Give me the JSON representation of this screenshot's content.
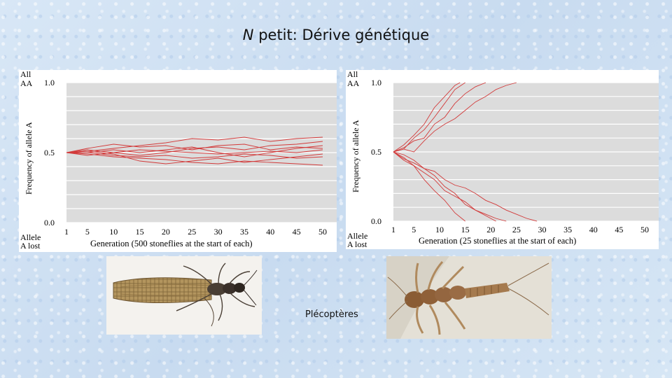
{
  "title": {
    "italic_part": "N",
    "rest": " petit: Dérive génétique"
  },
  "caption": "Plécoptères",
  "colors": {
    "line": "#d23a3a",
    "grid": "#ffffff",
    "plot_bg": "#dcdcdc"
  },
  "images": {
    "adult": "stonefly-adult-photo",
    "nymph": "stonefly-nymph-photo"
  },
  "chart_data": [
    {
      "type": "line",
      "xlabel": "Generation (500 stoneflies at the start of each)",
      "ylabel": "Frequency of allele A",
      "top_label_1": "All",
      "top_label_2": "AA",
      "bottom_label_1": "Allele",
      "bottom_label_2": "A lost",
      "xlim": [
        1,
        50
      ],
      "ylim": [
        0,
        1
      ],
      "x_ticks": [
        "1",
        "5",
        "10",
        "15",
        "20",
        "25",
        "30",
        "35",
        "40",
        "45",
        "50"
      ],
      "y_ticks": [
        "0.0",
        "0.5",
        "1.0"
      ],
      "grid": true,
      "series": [
        {
          "x": [
            1,
            5,
            10,
            15,
            20,
            25,
            30,
            35,
            40,
            45,
            50
          ],
          "y": [
            0.5,
            0.51,
            0.53,
            0.55,
            0.57,
            0.6,
            0.59,
            0.61,
            0.58,
            0.6,
            0.61
          ]
        },
        {
          "x": [
            1,
            5,
            10,
            15,
            20,
            25,
            30,
            35,
            40,
            45,
            50
          ],
          "y": [
            0.5,
            0.49,
            0.47,
            0.46,
            0.45,
            0.43,
            0.42,
            0.44,
            0.43,
            0.42,
            0.41
          ]
        },
        {
          "x": [
            1,
            5,
            10,
            15,
            20,
            25,
            30,
            35,
            40,
            45,
            50
          ],
          "y": [
            0.5,
            0.52,
            0.5,
            0.48,
            0.5,
            0.53,
            0.54,
            0.52,
            0.55,
            0.56,
            0.58
          ]
        },
        {
          "x": [
            1,
            5,
            10,
            15,
            20,
            25,
            30,
            35,
            40,
            45,
            50
          ],
          "y": [
            0.5,
            0.5,
            0.48,
            0.47,
            0.48,
            0.46,
            0.47,
            0.49,
            0.48,
            0.46,
            0.47
          ]
        },
        {
          "x": [
            1,
            5,
            10,
            15,
            20,
            25,
            30,
            35,
            40,
            45,
            50
          ],
          "y": [
            0.5,
            0.53,
            0.56,
            0.54,
            0.55,
            0.52,
            0.55,
            0.56,
            0.52,
            0.54,
            0.53
          ]
        },
        {
          "x": [
            1,
            5,
            10,
            15,
            20,
            25,
            30,
            35,
            40,
            45,
            50
          ],
          "y": [
            0.5,
            0.48,
            0.5,
            0.52,
            0.51,
            0.5,
            0.49,
            0.5,
            0.51,
            0.5,
            0.52
          ]
        },
        {
          "x": [
            1,
            5,
            10,
            15,
            20,
            25,
            30,
            35,
            40,
            45,
            50
          ],
          "y": [
            0.5,
            0.51,
            0.49,
            0.44,
            0.42,
            0.44,
            0.46,
            0.43,
            0.45,
            0.47,
            0.49
          ]
        },
        {
          "x": [
            1,
            5,
            10,
            15,
            20,
            25,
            30,
            35,
            40,
            45,
            50
          ],
          "y": [
            0.5,
            0.5,
            0.52,
            0.5,
            0.52,
            0.54,
            0.5,
            0.47,
            0.5,
            0.53,
            0.55
          ]
        }
      ]
    },
    {
      "type": "line",
      "xlabel": "Generation (25 stoneflies at the start of each)",
      "ylabel": "Frequency of allele A",
      "top_label_1": "All",
      "top_label_2": "AA",
      "bottom_label_1": "Allele",
      "bottom_label_2": "A lost",
      "xlim": [
        1,
        50
      ],
      "ylim": [
        0,
        1
      ],
      "x_ticks": [
        "1",
        "5",
        "10",
        "15",
        "20",
        "25",
        "30",
        "35",
        "40",
        "45",
        "50"
      ],
      "y_ticks": [
        "0.0",
        "0.5",
        "1.0"
      ],
      "grid": true,
      "series": [
        {
          "x": [
            1,
            3,
            5,
            7,
            9,
            11,
            13,
            14
          ],
          "y": [
            0.5,
            0.55,
            0.62,
            0.7,
            0.82,
            0.9,
            0.98,
            1.0
          ]
        },
        {
          "x": [
            1,
            3,
            5,
            7,
            9,
            11,
            13,
            15,
            17,
            19
          ],
          "y": [
            0.5,
            0.53,
            0.58,
            0.6,
            0.7,
            0.75,
            0.85,
            0.92,
            0.97,
            1.0
          ]
        },
        {
          "x": [
            1,
            3,
            5,
            7,
            9,
            11,
            13,
            15,
            17,
            19,
            21,
            23,
            25
          ],
          "y": [
            0.5,
            0.52,
            0.5,
            0.58,
            0.65,
            0.7,
            0.74,
            0.8,
            0.86,
            0.9,
            0.95,
            0.98,
            1.0
          ]
        },
        {
          "x": [
            1,
            3,
            5,
            7,
            9,
            11,
            13,
            15
          ],
          "y": [
            0.5,
            0.52,
            0.6,
            0.66,
            0.75,
            0.85,
            0.95,
            1.0
          ]
        },
        {
          "x": [
            1,
            3,
            5,
            7,
            9,
            11,
            13,
            15,
            17,
            19,
            21,
            23,
            25,
            27,
            29
          ],
          "y": [
            0.5,
            0.45,
            0.42,
            0.38,
            0.36,
            0.3,
            0.26,
            0.24,
            0.2,
            0.15,
            0.12,
            0.08,
            0.05,
            0.02,
            0.0
          ]
        },
        {
          "x": [
            1,
            3,
            5,
            7,
            9,
            11,
            13,
            15,
            17,
            19,
            21,
            23
          ],
          "y": [
            0.5,
            0.46,
            0.4,
            0.35,
            0.3,
            0.22,
            0.18,
            0.14,
            0.08,
            0.05,
            0.02,
            0.0
          ]
        },
        {
          "x": [
            1,
            3,
            5,
            7,
            9,
            11,
            13,
            15,
            17,
            19,
            21
          ],
          "y": [
            0.5,
            0.48,
            0.44,
            0.38,
            0.33,
            0.25,
            0.2,
            0.12,
            0.08,
            0.04,
            0.0
          ]
        },
        {
          "x": [
            1,
            3,
            5,
            7,
            9,
            11,
            13,
            15
          ],
          "y": [
            0.5,
            0.44,
            0.4,
            0.3,
            0.22,
            0.15,
            0.06,
            0.0
          ]
        }
      ]
    }
  ]
}
